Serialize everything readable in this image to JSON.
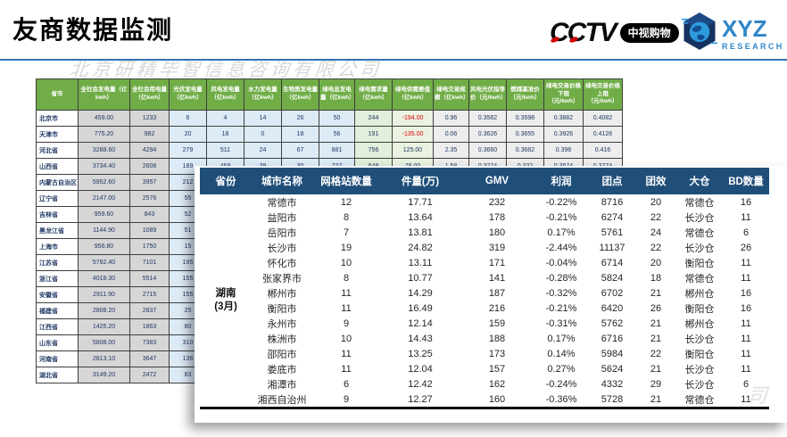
{
  "title": "友商数据监测",
  "watermark": "北京研精毕智信息咨询有限公司",
  "watermark_fragment": "司",
  "logos": {
    "cctv": {
      "text": "CCTV",
      "badge": "中视购物"
    },
    "xyz": {
      "text": "XYZ",
      "sub": "RESEARCH"
    }
  },
  "colors": {
    "rule_blue": "#2E74B5",
    "bg_header_green": "#70AD47",
    "fg_header_blue": "#1F4E79",
    "xyz_blue": "#2F86C7",
    "negative_red": "#E00000"
  },
  "bg_table": {
    "headers": [
      "省市",
      "全社会发电量（亿kwh）",
      "全社会用电量（亿kwh）",
      "光伏发电量（亿kwh）",
      "风电发电量（亿kwh）",
      "水力发电量（亿kwh）",
      "生物质发电量（亿kwh）",
      "绿电总发电量（亿kwh）",
      "绿电需求量（亿kwh）",
      "绿电供需差值（亿kwh）",
      "绿电交易规模（亿kwh）",
      "风电光伏指导价（元/kwh）",
      "燃煤基准价（元/kwh）",
      "绿电交易价格下限（元/kwh）",
      "绿电交易价格上限（元/kwh）"
    ],
    "rows": [
      [
        "北京市",
        "459.00",
        "1233",
        "6",
        "4",
        "14",
        "26",
        "50",
        "244",
        "-194.00",
        "0.96",
        "0.3582",
        "0.3598",
        "0.3882",
        "0.4082"
      ],
      [
        "天津市",
        "775.20",
        "982",
        "20",
        "18",
        "0",
        "18",
        "56",
        "191",
        "-135.00",
        "0.06",
        "0.3626",
        "0.3655",
        "0.3926",
        "0.4126"
      ],
      [
        "河北省",
        "3288.60",
        "4294",
        "279",
        "511",
        "24",
        "67",
        "881",
        "756",
        "125.00",
        "2.35",
        "0.3660",
        "0.3682",
        "0.396",
        "0.416"
      ],
      [
        "山西省",
        "3734.40",
        "2608",
        "189",
        "469",
        "39",
        "30",
        "727",
        "649",
        "78.00",
        "1.58",
        "0.3274",
        "0.332",
        "0.3574",
        "0.3774"
      ],
      [
        "内蒙古自治区",
        "5952.60",
        "3957",
        "212"
      ],
      [
        "辽宁省",
        "2147.00",
        "2576",
        "55"
      ],
      [
        "吉林省",
        "959.60",
        "843",
        "52"
      ],
      [
        "黑龙江省",
        "1144.90",
        "1089",
        "51"
      ],
      [
        "上海市",
        "956.80",
        "1750",
        "15"
      ],
      [
        "江苏省",
        "5782.40",
        "7101",
        "195"
      ],
      [
        "浙江省",
        "4018.30",
        "5514",
        "155"
      ],
      [
        "安徽省",
        "2911.90",
        "2715",
        "155"
      ],
      [
        "福建省",
        "2808.20",
        "2837",
        "25"
      ],
      [
        "江西省",
        "1425.20",
        "1863",
        "80"
      ],
      [
        "山东省",
        "5808.00",
        "7383",
        "310"
      ],
      [
        "河南省",
        "2813.10",
        "3647",
        "136"
      ],
      [
        "湖北省",
        "3149.20",
        "2472",
        "83"
      ]
    ]
  },
  "fg_table": {
    "province": "湖南",
    "month": "(3月)",
    "headers": [
      "省份",
      "城市名称",
      "网格站数量",
      "件量(万)",
      "GMV",
      "利润",
      "团点",
      "团效",
      "大仓",
      "BD数量"
    ],
    "rows": [
      [
        "常德市",
        "12",
        "17.71",
        "232",
        "-0.22%",
        "8716",
        "20",
        "常德仓",
        "16"
      ],
      [
        "益阳市",
        "8",
        "13.64",
        "178",
        "-0.21%",
        "6274",
        "22",
        "长沙仓",
        "11"
      ],
      [
        "岳阳市",
        "7",
        "13.81",
        "180",
        "0.17%",
        "5761",
        "24",
        "常德仓",
        "6"
      ],
      [
        "长沙市",
        "19",
        "24.82",
        "319",
        "-2.44%",
        "11137",
        "22",
        "长沙仓",
        "26"
      ],
      [
        "怀化市",
        "10",
        "13.11",
        "171",
        "-0.04%",
        "6714",
        "20",
        "衡阳仓",
        "11"
      ],
      [
        "张家界市",
        "8",
        "10.77",
        "141",
        "-0.28%",
        "5824",
        "18",
        "常德仓",
        "11"
      ],
      [
        "郴州市",
        "11",
        "14.29",
        "187",
        "-0.32%",
        "6702",
        "21",
        "郴州仓",
        "16"
      ],
      [
        "衡阳市",
        "11",
        "16.49",
        "216",
        "-0.21%",
        "6420",
        "26",
        "衡阳仓",
        "16"
      ],
      [
        "永州市",
        "9",
        "12.14",
        "159",
        "-0.31%",
        "5762",
        "21",
        "郴州仓",
        "11"
      ],
      [
        "株洲市",
        "10",
        "14.43",
        "188",
        "0.17%",
        "6716",
        "21",
        "长沙仓",
        "11"
      ],
      [
        "邵阳市",
        "11",
        "13.25",
        "173",
        "0.14%",
        "5984",
        "22",
        "衡阳仓",
        "11"
      ],
      [
        "娄底市",
        "11",
        "12.04",
        "157",
        "0.27%",
        "5624",
        "21",
        "长沙仓",
        "11"
      ],
      [
        "湘潭市",
        "6",
        "12.42",
        "162",
        "-0.24%",
        "4332",
        "29",
        "长沙仓",
        "6"
      ],
      [
        "湘西自治州",
        "9",
        "12.27",
        "160",
        "-0.36%",
        "5728",
        "21",
        "常德仓",
        "11"
      ]
    ]
  }
}
